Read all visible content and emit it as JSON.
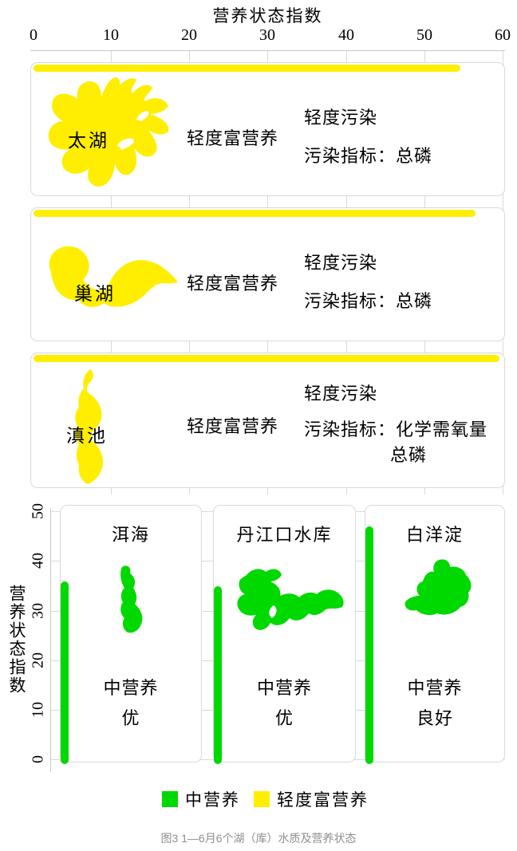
{
  "figure": {
    "caption": "图3 1—6月6个湖（库）水质及营养状态"
  },
  "colors": {
    "light_eutrophic_yellow": "#ffee00",
    "mesotrophic_green": "#00d900",
    "panel_border": "#d9d9d9",
    "grid_gray": "#d9d9d9",
    "caption_gray": "#8f8f8f"
  },
  "top_axis": {
    "title": "营养状态指数",
    "ticks": [
      "0",
      "10",
      "20",
      "30",
      "40",
      "50",
      "60"
    ],
    "max": 60
  },
  "bottom_axis": {
    "title": "营养状态指数",
    "ticks": [
      "0",
      "10",
      "20",
      "30",
      "40",
      "50"
    ],
    "max": 50
  },
  "panels_top": [
    {
      "name": "太湖",
      "trophic": "轻度富营养",
      "line1": "轻度污染",
      "line2": "污染指标：总磷"
    },
    {
      "name": "巢湖",
      "trophic": "轻度富营养",
      "line1": "轻度污染",
      "line2": "污染指标：总磷"
    },
    {
      "name": "滇池",
      "trophic": "轻度富营养",
      "line1": "轻度污染",
      "line2": "污染指标：化学需氧量",
      "line3": "总磷"
    }
  ],
  "panels_bottom": [
    {
      "name": "洱海",
      "trophic": "中营养",
      "quality": "优"
    },
    {
      "name": "丹江口水库",
      "trophic": "中营养",
      "quality": "优"
    },
    {
      "name": "白洋淀",
      "trophic": "中营养",
      "quality": "良好"
    }
  ],
  "legend": {
    "items": [
      {
        "label": "中营养"
      },
      {
        "label": "轻度富营养"
      }
    ]
  },
  "chart_data": [
    {
      "type": "bar",
      "orientation": "horizontal",
      "axis_title": "营养状态指数",
      "categories": [
        "太湖",
        "巢湖",
        "滇池"
      ],
      "values": [
        54,
        56,
        59
      ],
      "xlim": [
        0,
        60
      ],
      "x_ticks": [
        0,
        10,
        20,
        30,
        40,
        50,
        60
      ],
      "bar_color": "#ffee00",
      "legend_label": "轻度富营养",
      "annotations": [
        {
          "lake": "太湖",
          "trophic_status": "轻度富营养",
          "water_quality": "轻度污染",
          "pollution_indicators": [
            "总磷"
          ]
        },
        {
          "lake": "巢湖",
          "trophic_status": "轻度富营养",
          "water_quality": "轻度污染",
          "pollution_indicators": [
            "总磷"
          ]
        },
        {
          "lake": "滇池",
          "trophic_status": "轻度富营养",
          "water_quality": "轻度污染",
          "pollution_indicators": [
            "化学需氧量",
            "总磷"
          ]
        }
      ]
    },
    {
      "type": "bar",
      "orientation": "vertical",
      "ylabel": "营养状态指数",
      "categories": [
        "洱海",
        "丹江口水库",
        "白洋淀"
      ],
      "values": [
        36,
        35,
        47
      ],
      "ylim": [
        0,
        50
      ],
      "y_ticks": [
        0,
        10,
        20,
        30,
        40,
        50
      ],
      "bar_color": "#00d900",
      "legend_label": "中营养",
      "annotations": [
        {
          "lake": "洱海",
          "trophic_status": "中营养",
          "water_quality": "优"
        },
        {
          "lake": "丹江口水库",
          "trophic_status": "中营养",
          "water_quality": "优"
        },
        {
          "lake": "白洋淀",
          "trophic_status": "中营养",
          "water_quality": "良好"
        }
      ]
    }
  ]
}
